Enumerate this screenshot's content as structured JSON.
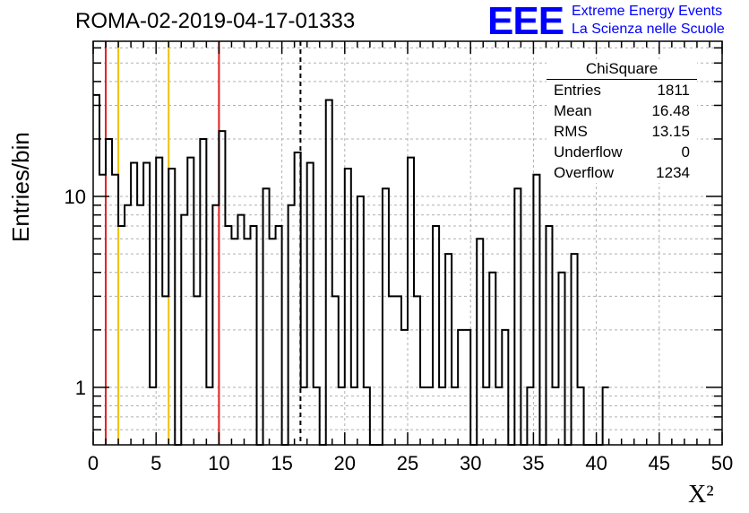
{
  "header": {
    "title": "ROMA-02-2019-04-17-01333",
    "logo_text": "EEE",
    "logo_line1": "Extreme Energy Events",
    "logo_line2": "La Scienza nelle Scuole"
  },
  "stats_box": {
    "title": "ChiSquare",
    "rows": [
      {
        "label": "Entries",
        "value": "1811"
      },
      {
        "label": "Mean",
        "value": "16.48"
      },
      {
        "label": "RMS",
        "value": "13.15"
      },
      {
        "label": "Underflow",
        "value": "0"
      },
      {
        "label": "Overflow",
        "value": "1234"
      }
    ]
  },
  "chart_data": {
    "type": "bar",
    "histogram": true,
    "xlabel": "X²",
    "ylabel": "Entries/bin",
    "xlim": [
      0,
      50
    ],
    "ylim": [
      0.5,
      65
    ],
    "yscale": "log",
    "grid": true,
    "bin_width": 0.5,
    "x_ticks": [
      "0",
      "5",
      "10",
      "15",
      "20",
      "25",
      "30",
      "35",
      "40",
      "45",
      "50"
    ],
    "y_ticks": [
      {
        "value": 1,
        "label": "1"
      },
      {
        "value": 10,
        "label": "10"
      }
    ],
    "values": [
      34,
      13,
      20,
      13,
      7,
      9,
      15,
      9,
      15,
      1,
      16,
      3,
      14,
      0,
      8,
      16,
      3,
      20,
      1,
      9,
      22,
      7,
      6,
      8,
      6,
      7,
      0,
      11,
      6,
      7,
      0,
      9,
      17,
      1,
      15,
      1,
      0,
      32,
      3,
      1,
      14,
      1,
      10,
      1,
      0,
      0,
      11,
      3,
      3,
      2,
      16,
      3,
      1,
      1,
      7,
      1,
      5,
      1,
      2,
      2,
      0,
      6,
      1,
      4,
      1,
      2,
      0,
      11,
      0,
      1,
      13,
      0,
      7,
      1,
      4,
      0,
      5,
      1,
      0,
      0,
      0,
      1
    ],
    "reference_lines": [
      {
        "x": 1,
        "color": "#e0201c"
      },
      {
        "x": 2,
        "color": "#f0c010"
      },
      {
        "x": 6,
        "color": "#f0c010"
      },
      {
        "x": 10,
        "color": "#e0201c"
      },
      {
        "x": 16.48,
        "color": "#000000",
        "style": "dashed"
      }
    ]
  }
}
